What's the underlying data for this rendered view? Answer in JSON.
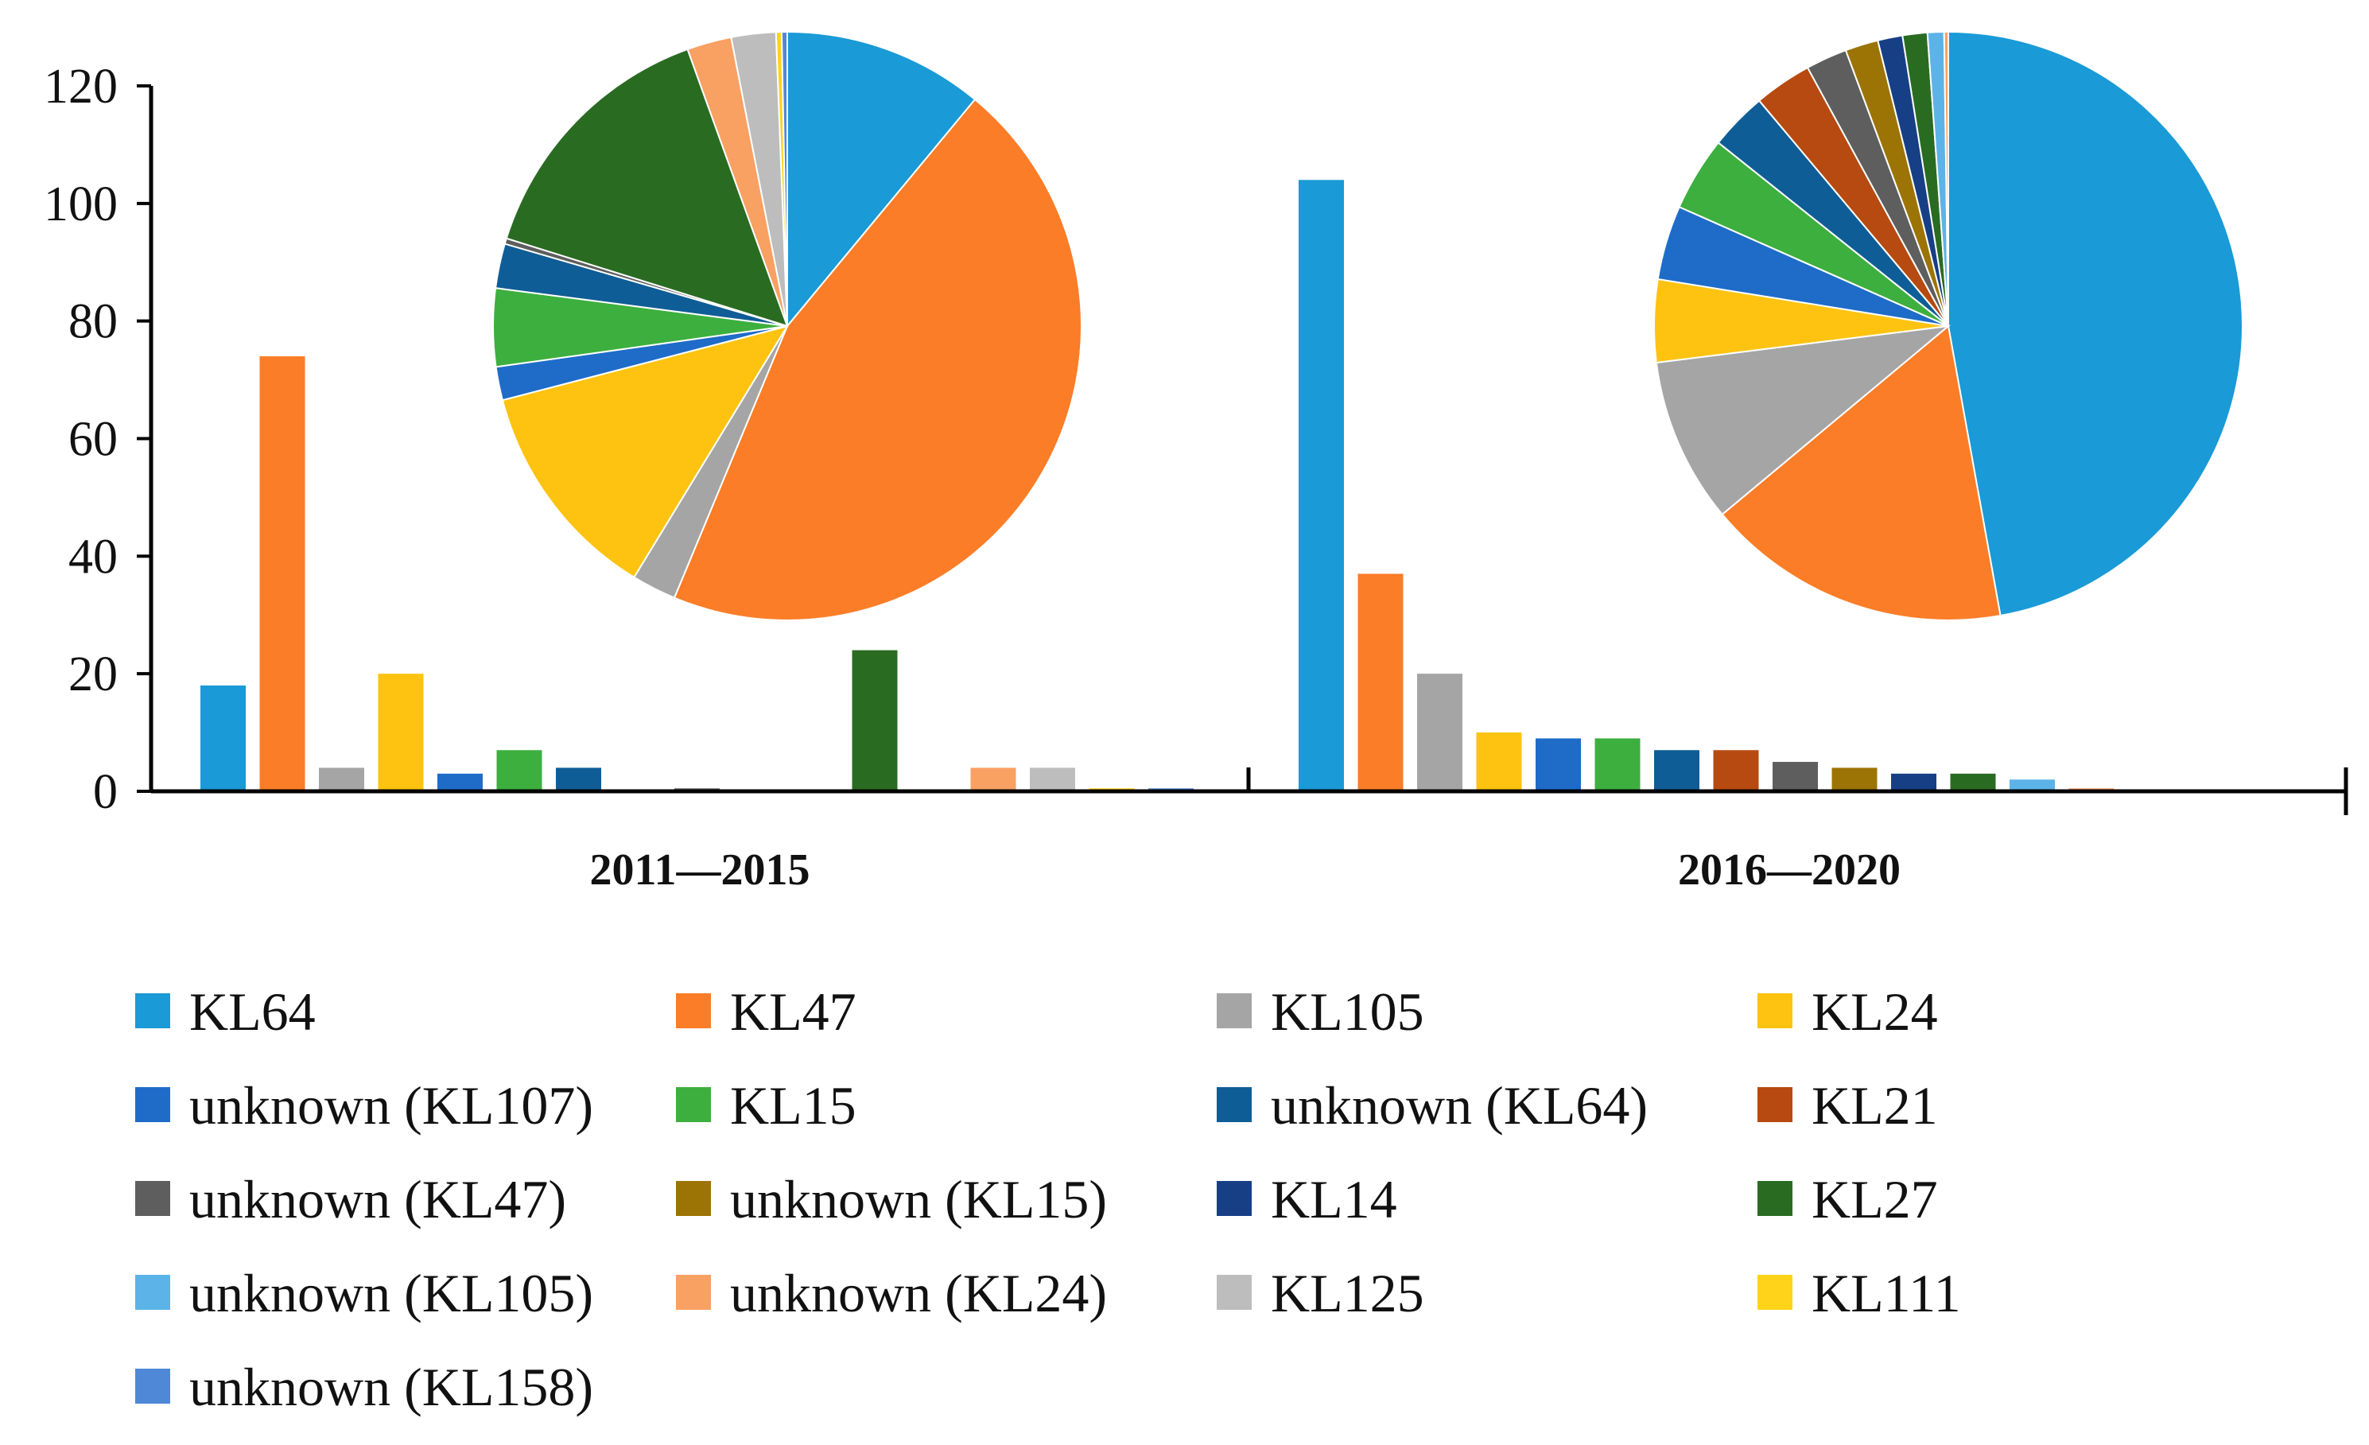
{
  "chart_data": {
    "type": "bar",
    "title": "",
    "xlabel": "",
    "ylabel": "",
    "ylim": [
      0,
      120
    ],
    "yticks": [
      0,
      20,
      40,
      60,
      80,
      100,
      120
    ],
    "groups": [
      "2011—2015",
      "2016—2020"
    ],
    "series": [
      {
        "name": "KL64",
        "color": "#1a9ad6",
        "values": [
          18,
          104
        ]
      },
      {
        "name": "KL47",
        "color": "#fb7d27",
        "values": [
          74,
          37
        ]
      },
      {
        "name": "KL105",
        "color": "#a5a5a5",
        "values": [
          4,
          20
        ]
      },
      {
        "name": "KL24",
        "color": "#fec311",
        "values": [
          20,
          10
        ]
      },
      {
        "name": "unknown (KL107)",
        "color": "#1e6cc8",
        "values": [
          3,
          9
        ]
      },
      {
        "name": "KL15",
        "color": "#3daf3f",
        "values": [
          7,
          9
        ]
      },
      {
        "name": "unknown (KL64)",
        "color": "#0f5d96",
        "values": [
          4,
          7
        ]
      },
      {
        "name": "KL21",
        "color": "#b74a10",
        "values": [
          0,
          7
        ]
      },
      {
        "name": "unknown (KL47)",
        "color": "#5e5e5e",
        "values": [
          0.5,
          5
        ]
      },
      {
        "name": "unknown (KL15)",
        "color": "#9c7405",
        "values": [
          0,
          4
        ]
      },
      {
        "name": "KL14",
        "color": "#173f86",
        "values": [
          0,
          3
        ]
      },
      {
        "name": "KL27",
        "color": "#2a6b22",
        "values": [
          24,
          3
        ]
      },
      {
        "name": "unknown (KL105)",
        "color": "#5cb3e8",
        "values": [
          0,
          2
        ]
      },
      {
        "name": "unknown (KL24)",
        "color": "#f9a063",
        "values": [
          4,
          0.5
        ]
      },
      {
        "name": "KL125",
        "color": "#bdbdbd",
        "values": [
          4,
          0
        ]
      },
      {
        "name": "KL111",
        "color": "#ffd31a",
        "values": [
          0.5,
          0
        ]
      },
      {
        "name": "unknown (KL158)",
        "color": "#4f88d6",
        "values": [
          0.5,
          0
        ]
      }
    ],
    "pies": [
      {
        "group": "2011—2015",
        "values": [
          18,
          74,
          4,
          20,
          3,
          7,
          4,
          0,
          0.5,
          0,
          0,
          24,
          0,
          4,
          4,
          0.5,
          0.5
        ]
      },
      {
        "group": "2016—2020",
        "values": [
          104,
          37,
          20,
          10,
          9,
          9,
          7,
          7,
          5,
          4,
          3,
          3,
          2,
          0.5,
          0,
          0,
          0
        ]
      }
    ],
    "grid": false,
    "legend_position": "bottom"
  }
}
